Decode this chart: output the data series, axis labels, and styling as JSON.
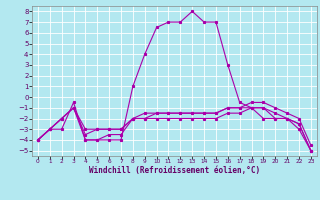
{
  "xlabel": "Windchill (Refroidissement éolien,°C)",
  "background_color": "#b3e8f0",
  "grid_color": "#ffffff",
  "line_color": "#aa00aa",
  "x_ticks": [
    0,
    1,
    2,
    3,
    4,
    5,
    6,
    7,
    8,
    9,
    10,
    11,
    12,
    13,
    14,
    15,
    16,
    17,
    18,
    19,
    20,
    21,
    22,
    23
  ],
  "y_ticks": [
    -5,
    -4,
    -3,
    -2,
    -1,
    0,
    1,
    2,
    3,
    4,
    5,
    6,
    7,
    8
  ],
  "xlim": [
    -0.5,
    23.5
  ],
  "ylim": [
    -5.5,
    8.5
  ],
  "series": [
    {
      "x": [
        0,
        1,
        2,
        3,
        4,
        5,
        6,
        7,
        8,
        9,
        10,
        11,
        12,
        13,
        14,
        15,
        16,
        17,
        18,
        19,
        20,
        21,
        22,
        23
      ],
      "y": [
        -4,
        -3,
        -3,
        -0.5,
        -4,
        -4,
        -4,
        -4,
        1,
        4,
        6.5,
        7,
        7,
        8,
        7,
        7,
        3,
        -0.5,
        -1,
        -2,
        -2,
        -2,
        -3,
        -5
      ]
    },
    {
      "x": [
        0,
        1,
        2,
        3,
        4,
        5,
        6,
        7,
        8,
        9,
        10,
        11,
        12,
        13,
        14,
        15,
        16,
        17,
        18,
        19,
        20,
        21,
        22,
        23
      ],
      "y": [
        -4,
        -3,
        -2,
        -1,
        -4,
        -4,
        -3.5,
        -3.5,
        -2,
        -1.5,
        -1.5,
        -1.5,
        -1.5,
        -1.5,
        -1.5,
        -1.5,
        -1,
        -1,
        -1,
        -1,
        -2,
        -2,
        -2.5,
        -5
      ]
    },
    {
      "x": [
        0,
        1,
        2,
        3,
        4,
        5,
        6,
        7,
        8,
        9,
        10,
        11,
        12,
        13,
        14,
        15,
        16,
        17,
        18,
        19,
        20,
        21,
        22,
        23
      ],
      "y": [
        -4,
        -3,
        -2,
        -1,
        -3.5,
        -3,
        -3,
        -3,
        -2,
        -2,
        -2,
        -2,
        -2,
        -2,
        -2,
        -2,
        -1.5,
        -1.5,
        -1,
        -1,
        -1.5,
        -2,
        -2.5,
        -5
      ]
    },
    {
      "x": [
        0,
        1,
        2,
        3,
        4,
        5,
        6,
        7,
        8,
        9,
        10,
        11,
        12,
        13,
        14,
        15,
        16,
        17,
        18,
        19,
        20,
        21,
        22,
        23
      ],
      "y": [
        -4,
        -3,
        -2,
        -1,
        -3,
        -3,
        -3,
        -3,
        -2,
        -2,
        -1.5,
        -1.5,
        -1.5,
        -1.5,
        -1.5,
        -1.5,
        -1,
        -1,
        -0.5,
        -0.5,
        -1,
        -1.5,
        -2,
        -4.5
      ]
    }
  ]
}
